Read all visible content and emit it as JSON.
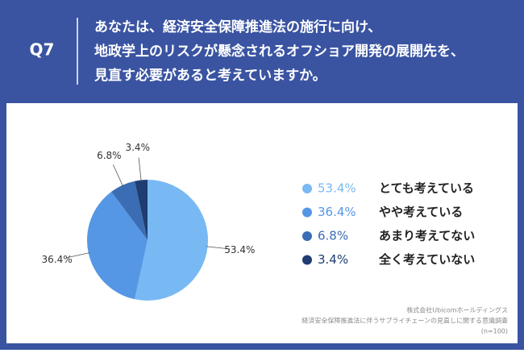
{
  "question": "Q7",
  "chart_data": {
    "type": "pie",
    "title": [
      "あなたは、経済安全保障推進法の施行に向け、",
      "地政学上のリスクが懸念されるオフショア開発の展開先を、",
      "見直す必要があると考えていますか。"
    ],
    "categories": [
      "とても考えている",
      "やや考えている",
      "あまり考えてない",
      "全く考えていない"
    ],
    "values": [
      53.4,
      36.4,
      6.8,
      3.4
    ],
    "value_labels": [
      "53.4%",
      "36.4%",
      "6.8%",
      "3.4%"
    ],
    "colors": [
      "#78b9f3",
      "#5597e4",
      "#3a6db3",
      "#1f3d70"
    ],
    "legend": "right"
  },
  "source": [
    "株式会社Ubicomホールディングス",
    "経済安全保障推進法に伴うサプライチェーンの見直しに関する意識調査",
    "(n=100)"
  ]
}
